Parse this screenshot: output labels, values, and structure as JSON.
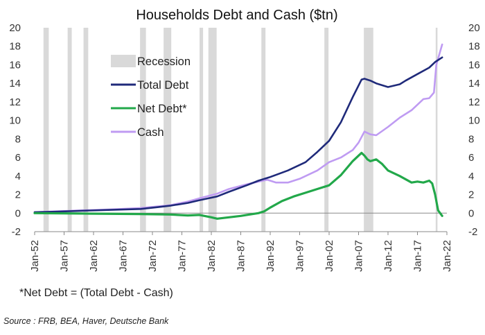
{
  "chart_data": {
    "type": "line",
    "title": "Households Debt and Cash ($tn)",
    "ylim": [
      -2,
      20
    ],
    "yticks": [
      -2,
      0,
      2,
      4,
      6,
      8,
      10,
      12,
      14,
      16,
      18,
      20
    ],
    "y_axes": "left-and-right",
    "x_tick_labels": [
      "Jan-52",
      "Jan-57",
      "Jan-62",
      "Jan-67",
      "Jan-72",
      "Jan-77",
      "Jan-82",
      "Jan-87",
      "Jan-92",
      "Jan-97",
      "Jan-02",
      "Jan-07",
      "Jan-12",
      "Jan-17",
      "Jan-22"
    ],
    "xlim": [
      1952.0,
      2022.0
    ],
    "grid": false,
    "legend_position": "top-left",
    "recessions": [
      [
        1953.5,
        1954.4
      ],
      [
        1957.6,
        1958.3
      ],
      [
        1960.3,
        1961.1
      ],
      [
        1969.9,
        1970.9
      ],
      [
        1973.9,
        1975.2
      ],
      [
        1980.0,
        1980.6
      ],
      [
        1981.5,
        1982.9
      ],
      [
        1990.5,
        1991.2
      ],
      [
        2001.2,
        2001.9
      ],
      [
        2007.9,
        2009.5
      ],
      [
        2020.1,
        2020.4
      ]
    ],
    "series": [
      {
        "name": "Recession",
        "color": "#d9d9d9",
        "kind": "shaded-band"
      },
      {
        "name": "Total Debt",
        "color": "#1f2a7a",
        "x": [
          1952,
          1955,
          1960,
          1965,
          1970,
          1973,
          1975,
          1978,
          1980,
          1983,
          1985,
          1988,
          1990,
          1992,
          1995,
          1998,
          2000,
          2002,
          2004,
          2006,
          2007.5,
          2008,
          2009,
          2010,
          2012,
          2014,
          2015,
          2017,
          2019,
          2020,
          2021.2
        ],
        "y": [
          0.1,
          0.15,
          0.25,
          0.35,
          0.45,
          0.65,
          0.8,
          1.1,
          1.4,
          1.8,
          2.3,
          3.0,
          3.5,
          3.9,
          4.6,
          5.5,
          6.6,
          7.8,
          9.8,
          12.5,
          14.4,
          14.5,
          14.3,
          14.0,
          13.6,
          13.9,
          14.3,
          15.0,
          15.7,
          16.3,
          16.8
        ]
      },
      {
        "name": "Net Debt*",
        "color": "#22a84a",
        "x": [
          1952,
          1960,
          1970,
          1975,
          1978,
          1980,
          1982,
          1983,
          1985,
          1987,
          1988,
          1990,
          1991,
          1992,
          1994,
          1996,
          1998,
          2000,
          2002,
          2004,
          2006,
          2007,
          2007.5,
          2008,
          2008.5,
          2009,
          2010,
          2011,
          2012,
          2014,
          2016,
          2017,
          2018,
          2019,
          2019.5,
          2020,
          2020.5,
          2021.2
        ],
        "y": [
          0.0,
          -0.05,
          -0.1,
          -0.15,
          -0.25,
          -0.2,
          -0.45,
          -0.6,
          -0.45,
          -0.3,
          -0.2,
          0.0,
          0.2,
          0.6,
          1.3,
          1.8,
          2.2,
          2.6,
          3.0,
          4.1,
          5.6,
          6.2,
          6.5,
          6.2,
          5.8,
          5.6,
          5.8,
          5.3,
          4.6,
          4.0,
          3.3,
          3.4,
          3.3,
          3.5,
          3.2,
          2.0,
          0.3,
          -0.3
        ]
      },
      {
        "name": "Cash",
        "color": "#bf9bf2",
        "x": [
          1952,
          1960,
          1965,
          1970,
          1975,
          1978,
          1980,
          1983,
          1985,
          1988,
          1990,
          1991.5,
          1992,
          1993,
          1995,
          1997,
          1998,
          2000,
          2002,
          2004,
          2006,
          2007,
          2008,
          2009,
          2010,
          2012,
          2014,
          2016,
          2018,
          2019,
          2019.8,
          2020.2,
          2021.2
        ],
        "y": [
          0.1,
          0.3,
          0.4,
          0.55,
          0.85,
          1.25,
          1.6,
          2.1,
          2.6,
          3.1,
          3.4,
          3.6,
          3.5,
          3.3,
          3.3,
          3.7,
          4.0,
          4.6,
          5.5,
          6.0,
          6.8,
          7.6,
          8.8,
          8.5,
          8.4,
          9.3,
          10.3,
          11.1,
          12.3,
          12.4,
          13.0,
          16.0,
          18.2
        ]
      }
    ],
    "annotations": [
      "*Net Debt = (Total Debt - Cash)"
    ],
    "source": "Source : FRB, BEA, Haver, Deutsche Bank"
  }
}
